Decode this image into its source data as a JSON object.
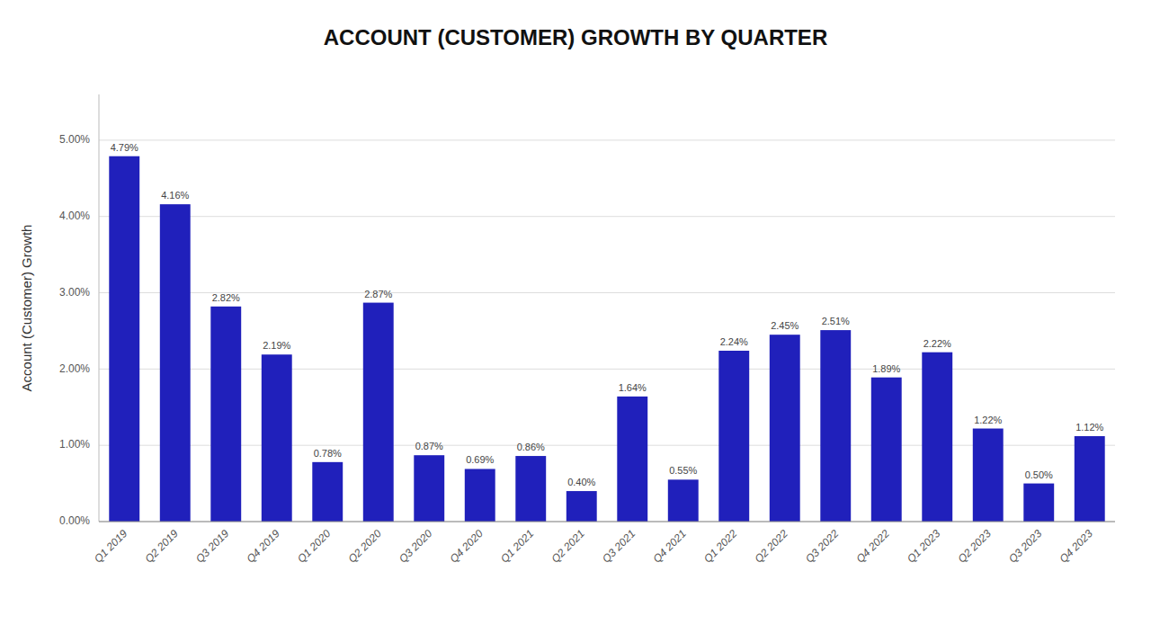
{
  "chart_data": {
    "type": "bar",
    "title": "ACCOUNT (CUSTOMER) GROWTH BY QUARTER",
    "ylabel": "Account (Customer) Growth",
    "categories": [
      "Q1 2019",
      "Q2 2019",
      "Q3 2019",
      "Q4 2019",
      "Q1 2020",
      "Q2 2020",
      "Q3 2020",
      "Q4 2020",
      "Q1 2021",
      "Q2 2021",
      "Q3 2021",
      "Q4 2021",
      "Q1 2022",
      "Q2 2022",
      "Q3 2022",
      "Q4 2022",
      "Q1 2023",
      "Q2 2023",
      "Q3 2023",
      "Q4 2023"
    ],
    "values": [
      4.79,
      4.16,
      2.82,
      2.19,
      0.78,
      2.87,
      0.87,
      0.69,
      0.86,
      0.4,
      1.64,
      0.55,
      2.24,
      2.45,
      2.51,
      1.89,
      2.22,
      1.22,
      0.5,
      1.12
    ],
    "value_labels": [
      "4.79%",
      "4.16%",
      "2.82%",
      "2.19%",
      "0.78%",
      "2.87%",
      "0.87%",
      "0.69%",
      "0.86%",
      "0.40%",
      "1.64%",
      "0.55%",
      "2.24%",
      "2.45%",
      "2.51%",
      "1.89%",
      "2.22%",
      "1.22%",
      "0.50%",
      "1.12%"
    ],
    "data_labels": true,
    "color": "#2020BB",
    "ylim": [
      0,
      5.6
    ],
    "yticks": [
      {
        "value": 0.0,
        "label": "0.00%"
      },
      {
        "value": 1.0,
        "label": "1.00%"
      },
      {
        "value": 2.0,
        "label": "2.00%"
      },
      {
        "value": 3.0,
        "label": "3.00%"
      },
      {
        "value": 4.0,
        "label": "4.00%"
      },
      {
        "value": 5.0,
        "label": "5.00%"
      }
    ],
    "grid": true
  }
}
